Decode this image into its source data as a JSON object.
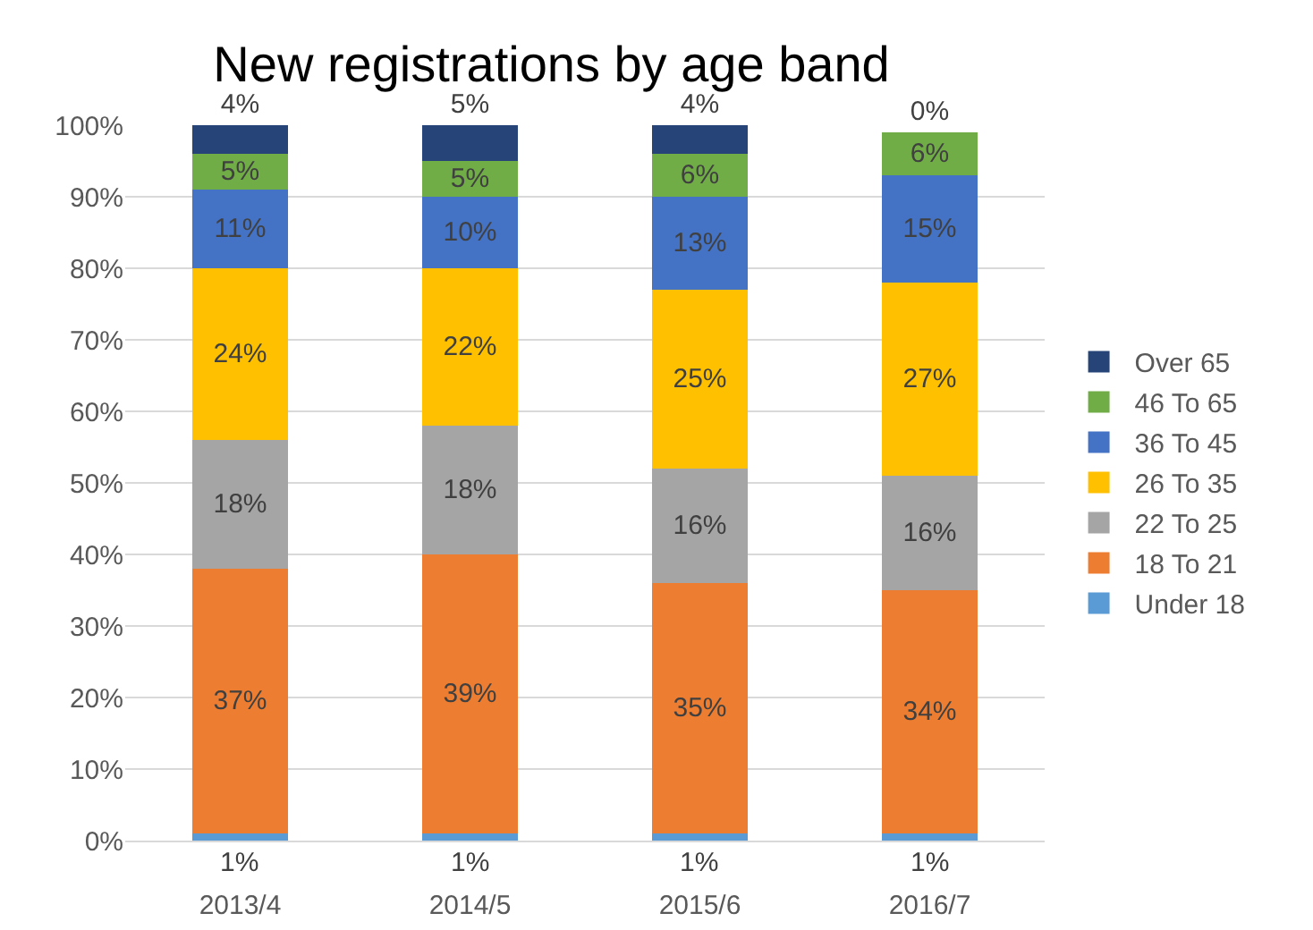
{
  "chart_data": {
    "type": "bar",
    "title": "New registrations by age band",
    "stacked": true,
    "categories": [
      "2013/4",
      "2014/5",
      "2015/6",
      "2016/7"
    ],
    "ylim": [
      0,
      100
    ],
    "yticks": [
      {
        "value": 0,
        "label": "0%"
      },
      {
        "value": 10,
        "label": "10%"
      },
      {
        "value": 20,
        "label": "20%"
      },
      {
        "value": 30,
        "label": "30%"
      },
      {
        "value": 40,
        "label": "40%"
      },
      {
        "value": 50,
        "label": "50%"
      },
      {
        "value": 60,
        "label": "60%"
      },
      {
        "value": 70,
        "label": "70%"
      },
      {
        "value": 80,
        "label": "80%"
      },
      {
        "value": 90,
        "label": "90%"
      },
      {
        "value": 100,
        "label": "100%"
      }
    ],
    "grid": "y",
    "legend": "right",
    "series": [
      {
        "name": "Under 18",
        "color": "#5b9bd5",
        "values": [
          1,
          1,
          1,
          1
        ],
        "value_labels": [
          "1%",
          "1%",
          "1%",
          "1%"
        ]
      },
      {
        "name": "18 To 21",
        "color": "#ed7d31",
        "values": [
          37,
          39,
          35,
          34
        ],
        "value_labels": [
          "37%",
          "39%",
          "35%",
          "34%"
        ]
      },
      {
        "name": "22 To 25",
        "color": "#a5a5a5",
        "values": [
          18,
          18,
          16,
          16
        ],
        "value_labels": [
          "18%",
          "18%",
          "16%",
          "16%"
        ]
      },
      {
        "name": "26 To 35",
        "color": "#ffc000",
        "values": [
          24,
          22,
          25,
          27
        ],
        "value_labels": [
          "24%",
          "22%",
          "25%",
          "27%"
        ]
      },
      {
        "name": "36 To 45",
        "color": "#4472c4",
        "values": [
          11,
          10,
          13,
          15
        ],
        "value_labels": [
          "11%",
          "10%",
          "13%",
          "15%"
        ]
      },
      {
        "name": "46 To 65",
        "color": "#70ad47",
        "values": [
          5,
          5,
          6,
          6
        ],
        "value_labels": [
          "5%",
          "5%",
          "6%",
          "6%"
        ]
      },
      {
        "name": "Over 65",
        "color": "#264478",
        "values": [
          4,
          5,
          4,
          0
        ],
        "value_labels": [
          "4%",
          "5%",
          "4%",
          "0%"
        ]
      }
    ]
  }
}
